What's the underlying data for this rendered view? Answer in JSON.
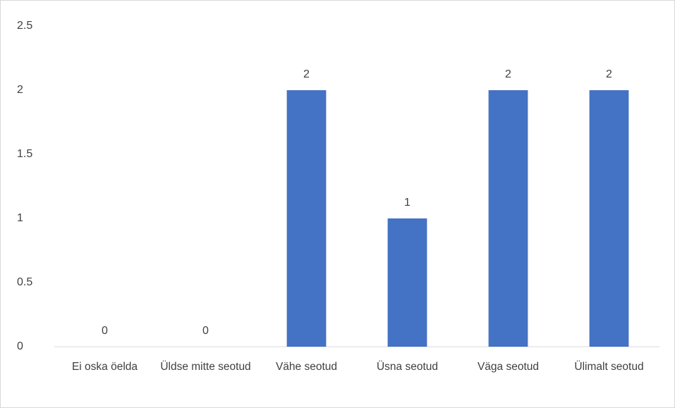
{
  "chart_data": {
    "type": "bar",
    "categories": [
      "Ei oska öelda",
      "Üldse mitte seotud",
      "Vähe seotud",
      "Üsna seotud",
      "Väga seotud",
      "Ülimalt seotud"
    ],
    "values": [
      0,
      0,
      2,
      1,
      2,
      2
    ],
    "color": "#4472c4",
    "ylim": [
      0,
      2.5
    ],
    "yticks": [
      0,
      0.5,
      1,
      1.5,
      2,
      2.5
    ],
    "grid": false,
    "data_labels": true
  }
}
